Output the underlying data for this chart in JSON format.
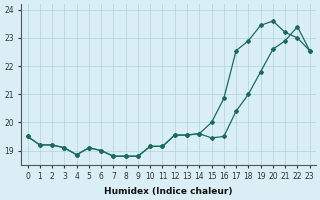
{
  "xlabel": "Humidex (Indice chaleur)",
  "ylabel": "",
  "line1_steep": [
    19.5,
    19.2,
    19.2,
    19.1,
    18.85,
    19.1,
    19.0,
    18.8,
    18.8,
    18.8,
    19.15,
    19.15,
    19.55,
    19.55,
    19.6,
    20.0,
    20.85,
    22.55,
    22.9,
    23.45,
    23.6,
    23.2,
    23.0,
    22.55
  ],
  "line2_grad": [
    19.5,
    19.2,
    19.2,
    19.1,
    18.85,
    19.1,
    19.0,
    18.8,
    18.8,
    18.8,
    19.15,
    19.15,
    19.55,
    19.55,
    19.6,
    19.45,
    19.5,
    20.4,
    21.0,
    21.8,
    22.6,
    22.9,
    23.4,
    22.55
  ],
  "hours": [
    0,
    1,
    2,
    3,
    4,
    5,
    6,
    7,
    8,
    9,
    10,
    11,
    12,
    13,
    14,
    15,
    16,
    17,
    18,
    19,
    20,
    21,
    22,
    23
  ],
  "ylim": [
    18.5,
    24.2
  ],
  "yticks": [
    19,
    20,
    21,
    22,
    23,
    24
  ],
  "line_color": "#1a6b5a",
  "bg_color": "#d9eff5",
  "grid_color": "#b0d4df",
  "marker": "D",
  "markersize": 2.0,
  "linewidth": 0.9,
  "tick_fontsize": 5.5,
  "xlabel_fontsize": 6.5
}
